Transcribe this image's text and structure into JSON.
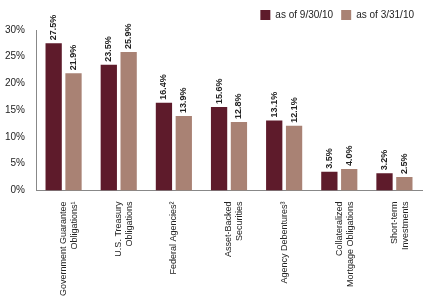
{
  "chart_data": {
    "type": "bar",
    "categories": [
      "Government Guarantee Obligations¹",
      "U.S. Treasury Obligations",
      "Federal Agencies²",
      "Asset-Backed Securities",
      "Agency Debentures³",
      "Collateralized Mortgage Obligations",
      "Short-term Investments"
    ],
    "series": [
      {
        "name": "as of 9/30/10",
        "color": "#5e1b2b",
        "values": [
          27.5,
          23.5,
          16.4,
          15.6,
          13.1,
          3.5,
          3.2
        ],
        "value_labels": [
          "27.5%",
          "23.5%",
          "16.4%",
          "15.6%",
          "13.1%",
          "3.5%",
          "3.2%"
        ]
      },
      {
        "name": "as of 3/31/10",
        "color": "#a98274",
        "values": [
          21.9,
          25.9,
          13.9,
          12.8,
          12.1,
          4.0,
          2.5
        ],
        "value_labels": [
          "21.9%",
          "25.9%",
          "13.9%",
          "12.8%",
          "12.1%",
          "4.0%",
          "2.5%"
        ]
      }
    ],
    "ylim": [
      0,
      30
    ],
    "yticks": [
      {
        "value": 0,
        "label": "0%"
      },
      {
        "value": 5,
        "label": "5%"
      },
      {
        "value": 10,
        "label": "10%"
      },
      {
        "value": 15,
        "label": "15%"
      },
      {
        "value": 20,
        "label": "20%"
      },
      {
        "value": 25,
        "label": "25%"
      },
      {
        "value": 30,
        "label": "30%"
      }
    ],
    "grid": false,
    "legend": "upper right",
    "data_labels": true
  }
}
